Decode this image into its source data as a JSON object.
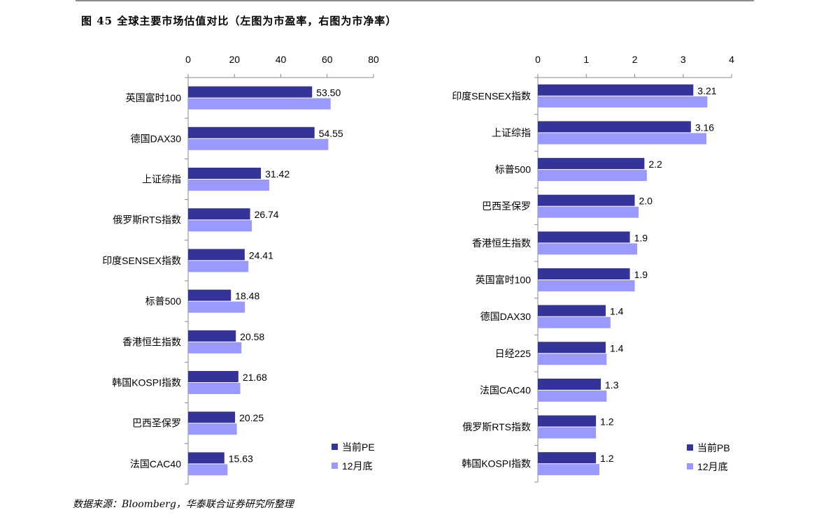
{
  "header": {
    "title": "图 45  全球主要市场估值对比（左图为市盈率，右图为市净率）",
    "source": "数据来源：Bloomberg，华泰联合证券研究所整理"
  },
  "colors": {
    "current": "#333399",
    "month_end": "#9999FF",
    "axis": "#888888"
  },
  "chart_data": [
    {
      "type": "bar",
      "orientation": "horizontal",
      "title": "",
      "categories": [
        "英国富时100",
        "德国DAX30",
        "上证综指",
        "俄罗斯RTS指数",
        "印度SENSEX指数",
        "标普500",
        "香港恒生指数",
        "韩国KOSPI指数",
        "巴西圣保罗",
        "法国CAC40"
      ],
      "series": [
        {
          "name": "当前PE",
          "values": [
            53.5,
            54.55,
            31.42,
            26.74,
            24.41,
            18.48,
            20.58,
            21.68,
            20.25,
            15.63
          ],
          "labels": [
            "53.50",
            "54.55",
            "31.42",
            "26.74",
            "24.41",
            "18.48",
            "20.58",
            "21.68",
            "20.25",
            "15.63"
          ]
        },
        {
          "name": "12月底",
          "values": [
            61.5,
            60.5,
            35.0,
            27.5,
            26.0,
            24.5,
            23.0,
            22.5,
            21.0,
            17.0
          ]
        }
      ],
      "xlim": [
        0,
        80
      ],
      "xticks": [
        "0",
        "20",
        "40",
        "60",
        "80"
      ],
      "xaxis_position": "top",
      "legend": "bottom-right",
      "grid": false
    },
    {
      "type": "bar",
      "orientation": "horizontal",
      "title": "",
      "categories": [
        "印度SENSEX指数",
        "上证综指",
        "标普500",
        "巴西圣保罗",
        "香港恒生指数",
        "英国富时100",
        "德国DAX30",
        "日经225",
        "法国CAC40",
        "俄罗斯RTS指数",
        "韩国KOSPI指数"
      ],
      "series": [
        {
          "name": "当前PB",
          "values": [
            3.21,
            3.16,
            2.2,
            2.0,
            1.9,
            1.9,
            1.4,
            1.4,
            1.3,
            1.2,
            1.2
          ],
          "labels": [
            "3.21",
            "3.16",
            "2.2",
            "2.0",
            "1.9",
            "1.9",
            "1.4",
            "1.4",
            "1.3",
            "1.2",
            "1.2"
          ]
        },
        {
          "name": "12月底",
          "values": [
            3.5,
            3.48,
            2.25,
            2.08,
            2.05,
            2.0,
            1.5,
            1.42,
            1.42,
            1.2,
            1.27
          ]
        }
      ],
      "xlim": [
        0,
        4
      ],
      "xticks": [
        "0",
        "1",
        "2",
        "3",
        "4"
      ],
      "xaxis_position": "top",
      "legend": "bottom-right",
      "grid": false
    }
  ]
}
